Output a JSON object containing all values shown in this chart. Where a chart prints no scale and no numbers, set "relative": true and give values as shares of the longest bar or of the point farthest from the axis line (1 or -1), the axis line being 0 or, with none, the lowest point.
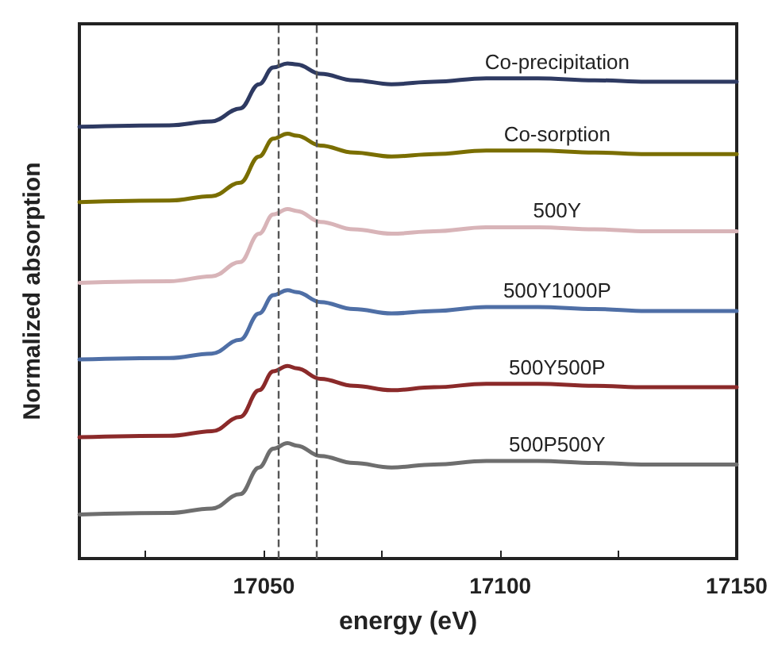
{
  "chart_data": {
    "type": "line",
    "relative": true,
    "xlabel": "energy (eV)",
    "ylabel": "Normalized absorption",
    "marker": "none",
    "line_style": "solid",
    "legend": false,
    "x": [
      17011,
      17030,
      17039,
      17045,
      17049,
      17052,
      17055,
      17057,
      17062,
      17069,
      17077,
      17086,
      17097,
      17108,
      17120,
      17131,
      17150
    ],
    "xlim": [
      17011,
      17150
    ],
    "xticks": [
      {
        "value": 17025,
        "label": null
      },
      17050,
      {
        "value": 17075,
        "label": null
      },
      17100,
      {
        "value": 17125,
        "label": null
      },
      17150
    ],
    "series": [
      {
        "name": "Co-precipitation",
        "color": "#2e3a62",
        "values": [
          0.872,
          0.875,
          0.883,
          0.909,
          0.958,
          0.992,
          1.0,
          0.998,
          0.979,
          0.966,
          0.958,
          0.963,
          0.97,
          0.97,
          0.966,
          0.963,
          0.963
        ]
      },
      {
        "name": "Co-sorption",
        "color": "#7a6e00",
        "values": [
          0.72,
          0.723,
          0.732,
          0.759,
          0.812,
          0.848,
          0.858,
          0.854,
          0.834,
          0.82,
          0.812,
          0.817,
          0.824,
          0.824,
          0.82,
          0.817,
          0.817
        ]
      },
      {
        "name": "500Y",
        "color": "#d8b4b8",
        "values": [
          0.557,
          0.56,
          0.57,
          0.599,
          0.656,
          0.695,
          0.706,
          0.702,
          0.68,
          0.665,
          0.656,
          0.661,
          0.669,
          0.669,
          0.665,
          0.661,
          0.661
        ]
      },
      {
        "name": "500Y1000P",
        "color": "#4f6fa6",
        "values": [
          0.402,
          0.405,
          0.414,
          0.442,
          0.495,
          0.532,
          0.542,
          0.538,
          0.518,
          0.504,
          0.495,
          0.5,
          0.508,
          0.508,
          0.504,
          0.5,
          0.5
        ]
      },
      {
        "name": "500Y500P",
        "color": "#8b2a2a",
        "values": [
          0.245,
          0.248,
          0.257,
          0.286,
          0.34,
          0.378,
          0.389,
          0.384,
          0.363,
          0.349,
          0.34,
          0.346,
          0.353,
          0.353,
          0.349,
          0.346,
          0.346
        ]
      },
      {
        "name": "500P500Y",
        "color": "#6e6e6e",
        "values": [
          0.089,
          0.092,
          0.101,
          0.13,
          0.184,
          0.222,
          0.233,
          0.228,
          0.207,
          0.193,
          0.184,
          0.19,
          0.197,
          0.197,
          0.193,
          0.19,
          0.19
        ]
      }
    ],
    "ref_lines": [
      {
        "axis": "x",
        "value": 17053,
        "color": "#555555",
        "line_style": "dashed"
      },
      {
        "axis": "x",
        "value": 17061,
        "color": "#555555",
        "line_style": "dashed"
      }
    ]
  }
}
